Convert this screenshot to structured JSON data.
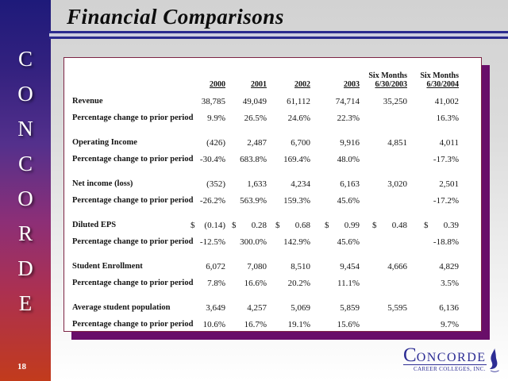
{
  "slide": {
    "title": "Financial Comparisons",
    "page_number": "18",
    "sidebar_letters": [
      "C",
      "O",
      "N",
      "C",
      "O",
      "R",
      "D",
      "E"
    ]
  },
  "colors": {
    "sidebar_top": "#1e1a7a",
    "sidebar_middle": "#8c2f77",
    "sidebar_bottom": "#c23b1c",
    "accent_rule": "#2b2b8e",
    "table_border": "#7c2444",
    "table_shadow": "#690e69",
    "logo_blue": "#2d2d94"
  },
  "table": {
    "dollar_sign": "$",
    "headers": [
      {
        "line1": "",
        "line2": "2000"
      },
      {
        "line1": "",
        "line2": "2001"
      },
      {
        "line1": "",
        "line2": "2002"
      },
      {
        "line1": "",
        "line2": "2003"
      },
      {
        "line1": "Six Months",
        "line2": "6/30/2003"
      },
      {
        "line1": "Six Months",
        "line2": "6/30/2004"
      }
    ],
    "rows": [
      {
        "type": "metric",
        "label": "Revenue",
        "cells": [
          "38,785",
          "49,049",
          "61,112",
          "74,714",
          "35,250",
          "41,002"
        ]
      },
      {
        "type": "pct",
        "label": "Percentage change to prior period",
        "cells": [
          "9.9%",
          "26.5%",
          "24.6%",
          "22.3%",
          "",
          "16.3%"
        ]
      },
      {
        "type": "spacer"
      },
      {
        "type": "metric",
        "label": "Operating Income",
        "cells": [
          "(426)",
          "2,487",
          "6,700",
          "9,916",
          "4,851",
          "4,011"
        ]
      },
      {
        "type": "pct",
        "label": "Percentage change to prior period",
        "cells": [
          "-30.4%",
          "683.8%",
          "169.4%",
          "48.0%",
          "",
          "-17.3%"
        ]
      },
      {
        "type": "spacer"
      },
      {
        "type": "metric",
        "label": "Net income (loss)",
        "cells": [
          "(352)",
          "1,633",
          "4,234",
          "6,163",
          "3,020",
          "2,501"
        ]
      },
      {
        "type": "pct",
        "label": "Percentage change to prior period",
        "cells": [
          "-26.2%",
          "563.9%",
          "159.3%",
          "45.6%",
          "",
          "-17.2%"
        ]
      },
      {
        "type": "spacer"
      },
      {
        "type": "metric",
        "label": "Diluted EPS",
        "dollar": true,
        "cells": [
          "(0.14)",
          "0.28",
          "0.68",
          "0.99",
          "0.48",
          "0.39"
        ]
      },
      {
        "type": "pct",
        "label": "Percentage change to prior period",
        "cells": [
          "-12.5%",
          "300.0%",
          "142.9%",
          "45.6%",
          "",
          "-18.8%"
        ]
      },
      {
        "type": "spacer"
      },
      {
        "type": "metric",
        "label": "Student Enrollment",
        "cells": [
          "6,072",
          "7,080",
          "8,510",
          "9,454",
          "4,666",
          "4,829"
        ]
      },
      {
        "type": "pct",
        "label": "Percentage change to prior period",
        "cells": [
          "7.8%",
          "16.6%",
          "20.2%",
          "11.1%",
          "",
          "3.5%"
        ]
      },
      {
        "type": "spacer"
      },
      {
        "type": "metric",
        "label": "Average student population",
        "cells": [
          "3,649",
          "4,257",
          "5,069",
          "5,859",
          "5,595",
          "6,136"
        ]
      },
      {
        "type": "pct",
        "label": "Percentage change to prior period",
        "cells": [
          "10.6%",
          "16.7%",
          "19.1%",
          "15.6%",
          "",
          "9.7%"
        ]
      }
    ]
  },
  "logo": {
    "initial": "C",
    "rest": "ONCORDE",
    "subtitle": "CAREER COLLEGES, INC."
  }
}
